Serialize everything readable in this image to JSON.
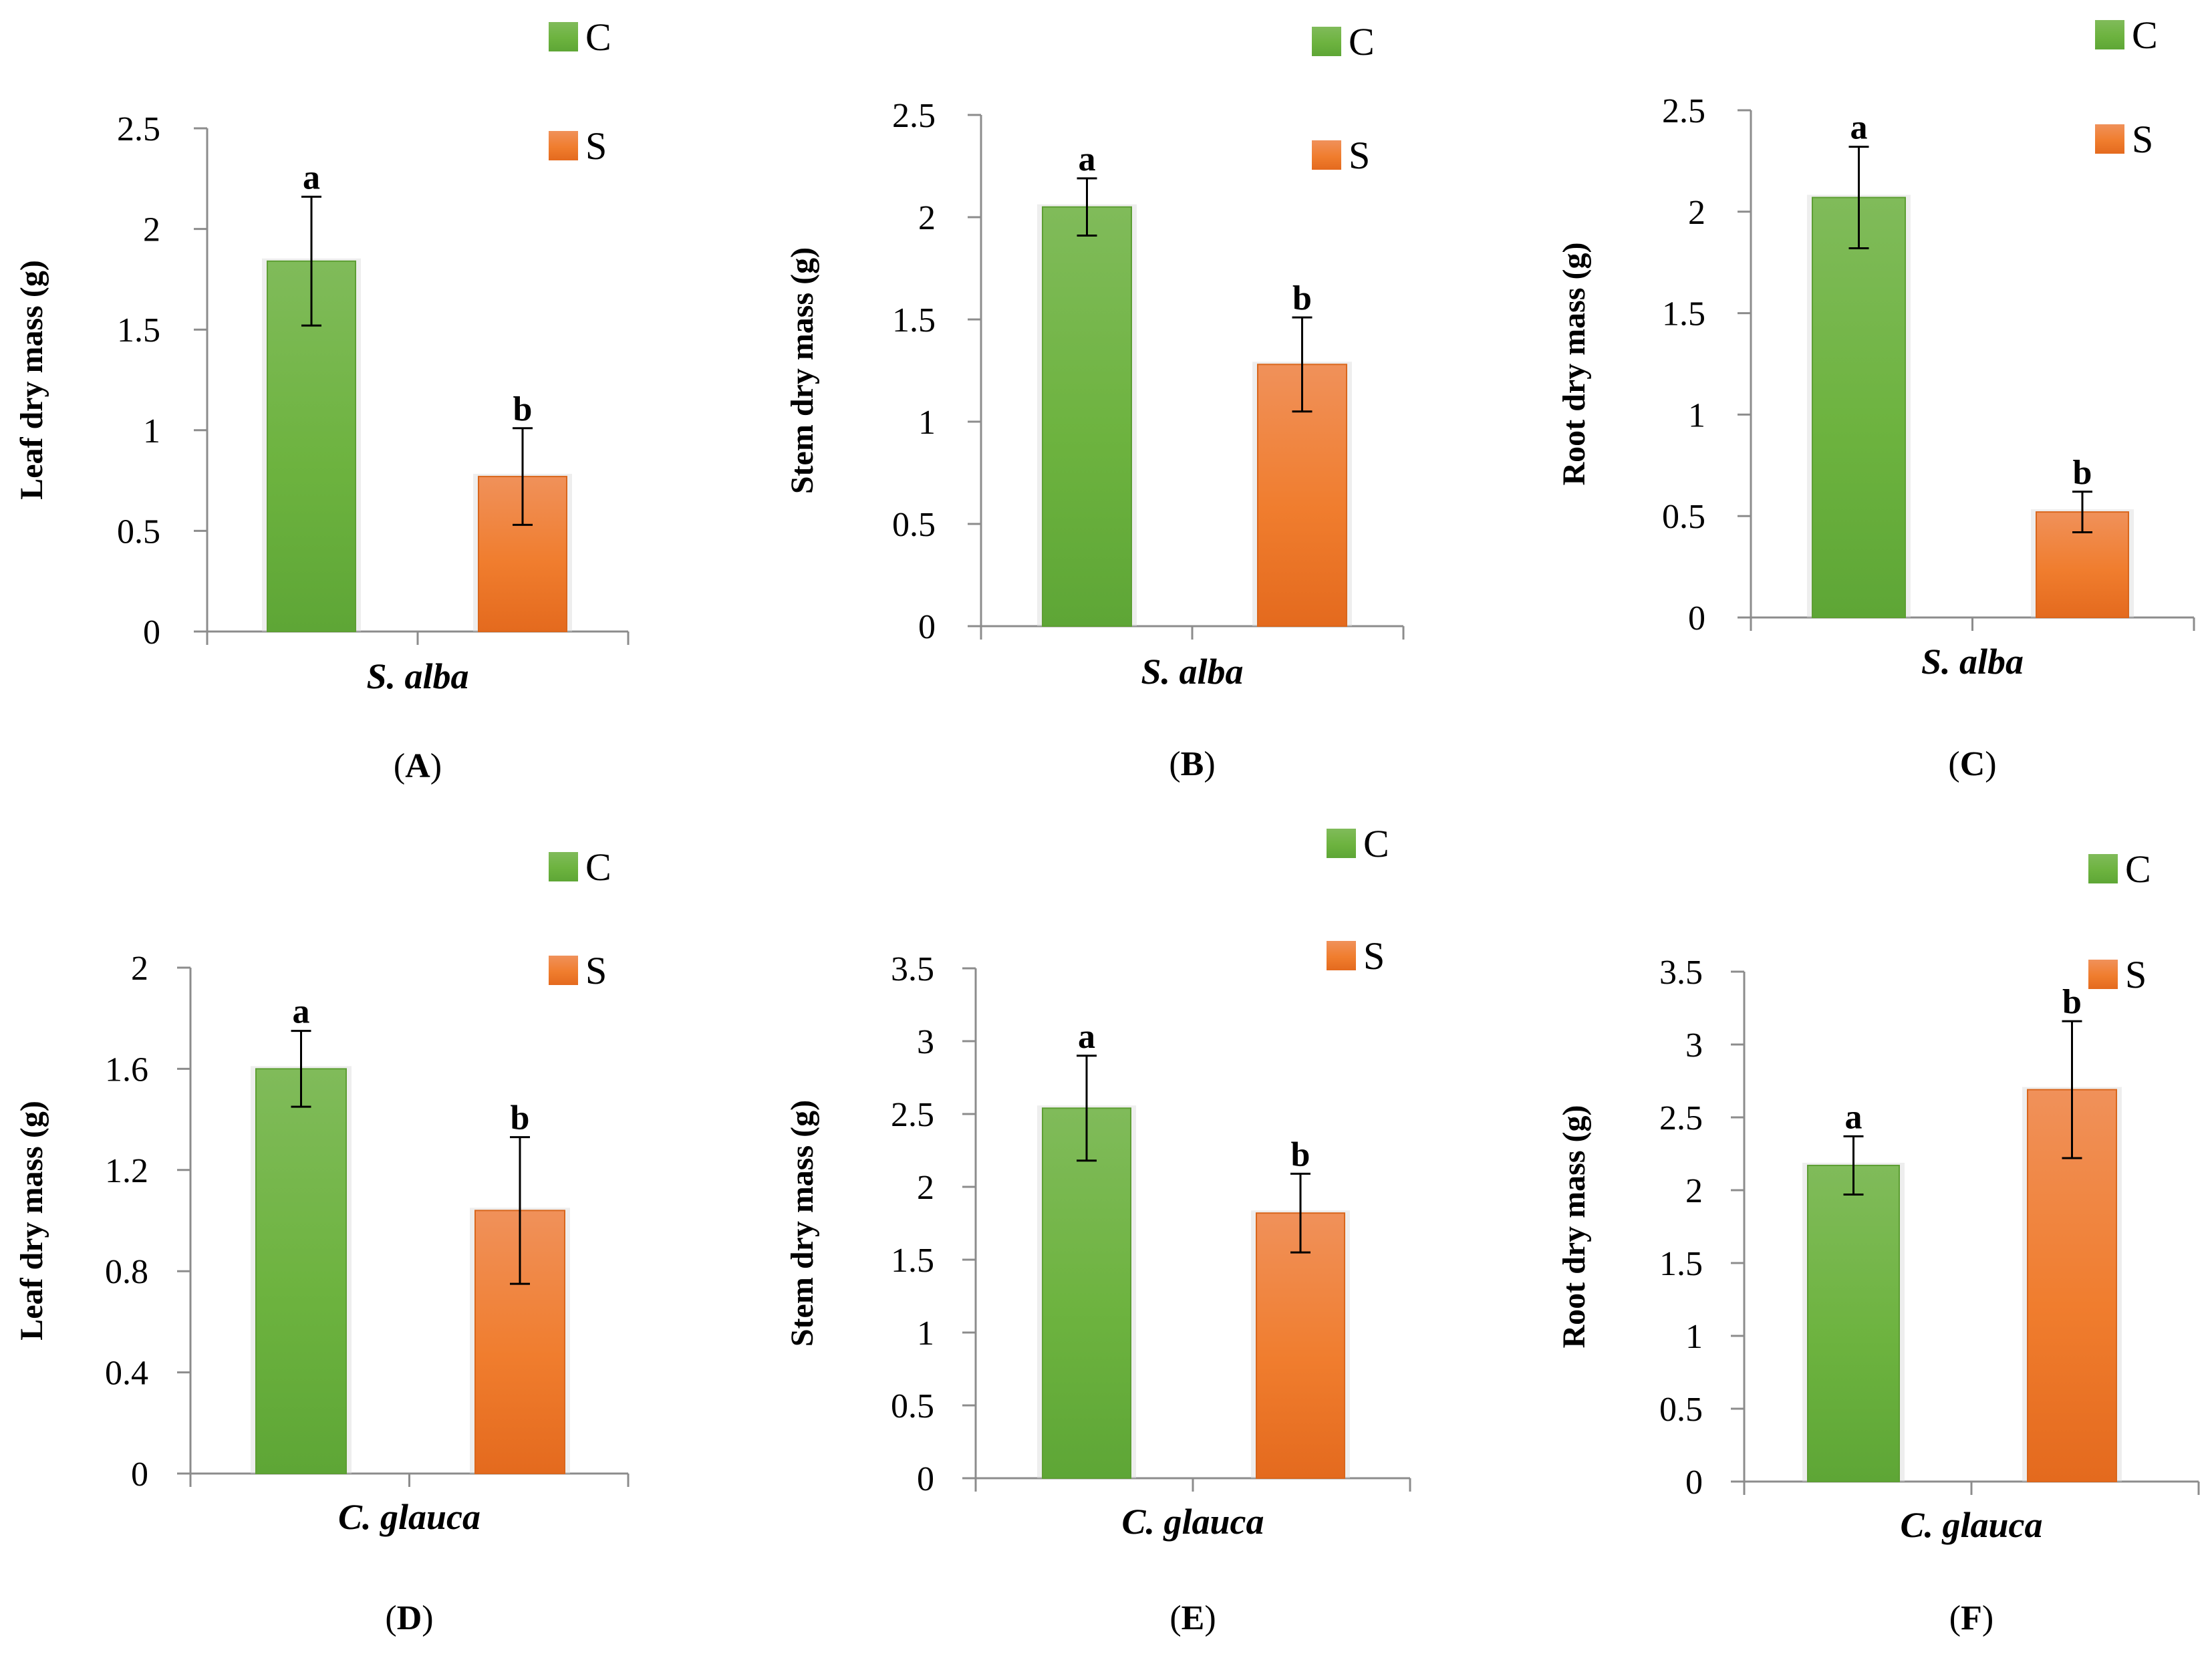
{
  "figure_title": "",
  "colors": {
    "control": "#6db33f",
    "stress": "#f07d2e",
    "axis": "#8c8c8c",
    "error_bar": "#000000"
  },
  "chart_data": [
    {
      "id": "A",
      "type": "bar",
      "panel_label": "A",
      "ylabel": "Leaf dry mass (g)",
      "xlabel": "S. alba",
      "ylim": [
        0,
        2.5
      ],
      "ticks": [
        "0",
        "0.5",
        "1",
        "1.5",
        "2",
        "2.5"
      ],
      "series": [
        {
          "name": "C",
          "value": 1.84,
          "error": 0.32,
          "letter": "a"
        },
        {
          "name": "S",
          "value": 0.77,
          "error": 0.24,
          "letter": "b"
        }
      ]
    },
    {
      "id": "B",
      "type": "bar",
      "panel_label": "B",
      "ylabel": "Stem dry mass (g)",
      "xlabel": "S. alba",
      "ylim": [
        0,
        2.5
      ],
      "ticks": [
        "0",
        "0.5",
        "1",
        "1.5",
        "2",
        "2.5"
      ],
      "series": [
        {
          "name": "C",
          "value": 2.05,
          "error": 0.14,
          "letter": "a"
        },
        {
          "name": "S",
          "value": 1.28,
          "error": 0.23,
          "letter": "b"
        }
      ]
    },
    {
      "id": "C",
      "type": "bar",
      "panel_label": "C",
      "ylabel": "Root dry mass (g)",
      "xlabel": "S. alba",
      "ylim": [
        0,
        2.5
      ],
      "ticks": [
        "0",
        "0.5",
        "1",
        "1.5",
        "2",
        "2.5"
      ],
      "series": [
        {
          "name": "C",
          "value": 2.07,
          "error": 0.25,
          "letter": "a"
        },
        {
          "name": "S",
          "value": 0.52,
          "error": 0.1,
          "letter": "b"
        }
      ]
    },
    {
      "id": "D",
      "type": "bar",
      "panel_label": "D",
      "ylabel": "Leaf dry mass (g)",
      "xlabel": "C. glauca",
      "ylim": [
        0,
        2
      ],
      "ticks": [
        "0",
        "0.4",
        "0.8",
        "1.2",
        "1.6",
        "2"
      ],
      "series": [
        {
          "name": "C",
          "value": 1.6,
          "error": 0.15,
          "letter": "a"
        },
        {
          "name": "S",
          "value": 1.04,
          "error": 0.29,
          "letter": "b"
        }
      ]
    },
    {
      "id": "E",
      "type": "bar",
      "panel_label": "E",
      "ylabel": "Stem dry mass (g)",
      "xlabel": "C. glauca",
      "ylim": [
        0,
        3.5
      ],
      "ticks": [
        "0",
        "0.5",
        "1",
        "1.5",
        "2",
        "2.5",
        "3",
        "3.5"
      ],
      "series": [
        {
          "name": "C",
          "value": 2.54,
          "error": 0.36,
          "letter": "a"
        },
        {
          "name": "S",
          "value": 1.82,
          "error": 0.27,
          "letter": "b"
        }
      ]
    },
    {
      "id": "F",
      "type": "bar",
      "panel_label": "F",
      "ylabel": "Root dry mass (g)",
      "xlabel": "C. glauca",
      "ylim": [
        0,
        3.5
      ],
      "ticks": [
        "0",
        "0.5",
        "1",
        "1.5",
        "2",
        "2.5",
        "3",
        "3.5"
      ],
      "series": [
        {
          "name": "C",
          "value": 2.17,
          "error": 0.2,
          "letter": "a"
        },
        {
          "name": "S",
          "value": 2.69,
          "error": 0.47,
          "letter": "b"
        }
      ]
    }
  ]
}
